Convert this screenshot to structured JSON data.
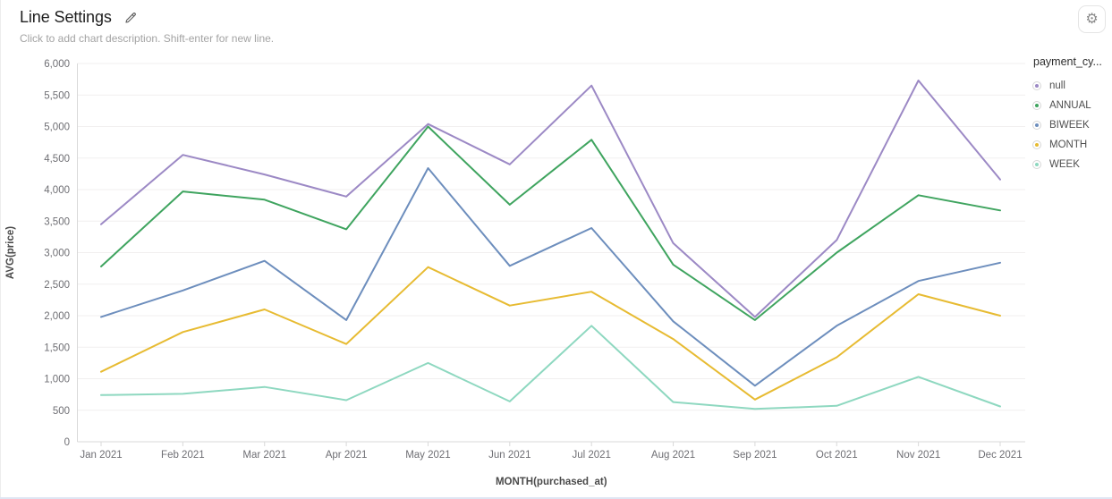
{
  "header": {
    "title": "Line Settings",
    "edit_icon": "pencil-icon",
    "description_placeholder": "Click to add chart description. Shift-enter for new line.",
    "settings_icon": "gear-icon"
  },
  "legend": {
    "title": "payment_cy...",
    "items": [
      {
        "label": "null",
        "color": "#9c89c5"
      },
      {
        "label": "ANNUAL",
        "color": "#3fa45f"
      },
      {
        "label": "BIWEEK",
        "color": "#6d8ebd"
      },
      {
        "label": "MONTH",
        "color": "#e7bb32"
      },
      {
        "label": "WEEK",
        "color": "#8ed8c0"
      }
    ]
  },
  "chart_data": {
    "type": "line",
    "title": "",
    "xlabel": "MONTH(purchased_at)",
    "ylabel": "AVG(price)",
    "x": [
      "Jan 2021",
      "Feb 2021",
      "Mar 2021",
      "Apr 2021",
      "May 2021",
      "Jun 2021",
      "Jul 2021",
      "Aug 2021",
      "Sep 2021",
      "Oct 2021",
      "Nov 2021",
      "Dec 2021"
    ],
    "ylim": [
      0,
      6000
    ],
    "ytick_step": 500,
    "yticks": [
      "0",
      "500",
      "1,000",
      "1,500",
      "2,000",
      "2,500",
      "3,000",
      "3,500",
      "4,000",
      "4,500",
      "5,000",
      "5,500",
      "6,000"
    ],
    "grid": true,
    "legend_position": "right",
    "series": [
      {
        "name": "null",
        "color": "#9c89c5",
        "values": [
          3450,
          4550,
          4240,
          3890,
          5040,
          4400,
          5650,
          3150,
          1980,
          3200,
          5730,
          4160
        ]
      },
      {
        "name": "ANNUAL",
        "color": "#3fa45f",
        "values": [
          2780,
          3970,
          3840,
          3370,
          5000,
          3760,
          4790,
          2810,
          1930,
          3000,
          3910,
          3670
        ]
      },
      {
        "name": "BIWEEK",
        "color": "#6d8ebd",
        "values": [
          1980,
          2400,
          2870,
          1930,
          4340,
          2790,
          3390,
          1910,
          890,
          1840,
          2550,
          2840
        ]
      },
      {
        "name": "MONTH",
        "color": "#e7bb32",
        "values": [
          1110,
          1740,
          2100,
          1550,
          2770,
          2160,
          2380,
          1630,
          670,
          1340,
          2340,
          2000
        ]
      },
      {
        "name": "WEEK",
        "color": "#8ed8c0",
        "values": [
          740,
          760,
          870,
          660,
          1250,
          640,
          1840,
          630,
          520,
          570,
          1030,
          560
        ]
      }
    ]
  }
}
